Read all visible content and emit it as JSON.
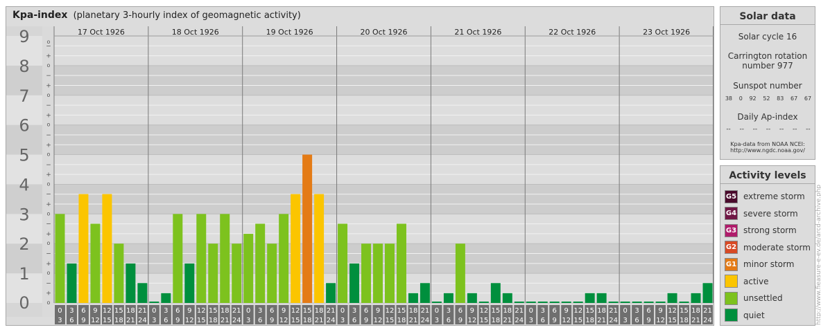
{
  "title": {
    "main": "Kpa-index",
    "sub": "(planetary 3-hourly index of geomagnetic activity)"
  },
  "chart_data": {
    "type": "bar",
    "days": [
      "17 Oct 1926",
      "18 Oct 1926",
      "19 Oct 1926",
      "20 Oct 1926",
      "21 Oct 1926",
      "22 Oct 1926",
      "23 Oct 1926"
    ],
    "interval_start": [
      "0",
      "3",
      "6",
      "9",
      "12",
      "15",
      "18",
      "21"
    ],
    "interval_end": [
      "3",
      "6",
      "9",
      "12",
      "15",
      "18",
      "21",
      "24"
    ],
    "y_major": [
      "0",
      "1",
      "2",
      "3",
      "4",
      "5",
      "6",
      "7",
      "8",
      "9"
    ],
    "y_minor": [
      "+",
      "o",
      "−"
    ],
    "ylim": [
      0,
      9
    ],
    "values": [
      [
        3.0,
        1.33,
        3.67,
        2.67,
        3.67,
        2.0,
        1.33,
        0.67
      ],
      [
        0.0,
        0.33,
        3.0,
        1.33,
        3.0,
        2.0,
        3.0,
        2.0
      ],
      [
        2.33,
        2.67,
        2.0,
        3.0,
        3.67,
        5.0,
        3.67,
        0.67
      ],
      [
        2.67,
        1.33,
        2.0,
        2.0,
        2.0,
        2.67,
        0.33,
        0.67
      ],
      [
        0.0,
        0.33,
        2.0,
        0.33,
        0.0,
        0.67,
        0.33,
        0.0
      ],
      [
        0.0,
        0.0,
        0.0,
        0.0,
        0.0,
        0.33,
        0.33,
        0.0
      ],
      [
        0.0,
        0.0,
        0.0,
        0.0,
        0.33,
        0.0,
        0.33,
        0.67
      ]
    ],
    "level_colors": {
      "quiet": "#008f3d",
      "unsettled": "#7dc21e",
      "active": "#fbc500",
      "minor_storm": "#e47b16",
      "moderate_storm": "#d84a25",
      "strong_storm": "#b01c6b",
      "severe_storm": "#701745",
      "extreme_storm": "#4a0b2c"
    }
  },
  "solar": {
    "title": "Solar data",
    "cycle": "Solar cycle 16",
    "carrington_line1": "Carrington rotation",
    "carrington_line2": "number 977",
    "sunspot_label": "Sunspot number",
    "sunspot_values": [
      "38",
      "0",
      "92",
      "52",
      "83",
      "67",
      "67"
    ],
    "ap_label": "Daily Ap-index",
    "ap_values": [
      "--",
      "--",
      "--",
      "--",
      "--",
      "--",
      "--"
    ],
    "source_line1": "Kpa-data from NOAA NCEI:",
    "source_line2": "http://www.ngdc.noaa.gov/"
  },
  "activity": {
    "title": "Activity levels",
    "items": [
      {
        "code": "G5",
        "label": "extreme storm",
        "color": "#4a0b2c"
      },
      {
        "code": "G4",
        "label": "severe storm",
        "color": "#701745"
      },
      {
        "code": "G3",
        "label": "strong storm",
        "color": "#b01c6b"
      },
      {
        "code": "G2",
        "label": "moderate storm",
        "color": "#d84a25"
      },
      {
        "code": "G1",
        "label": "minor storm",
        "color": "#e47b16"
      },
      {
        "code": "",
        "label": "active",
        "color": "#fbc500"
      },
      {
        "code": "",
        "label": "unsettled",
        "color": "#7dc21e"
      },
      {
        "code": "",
        "label": "quiet",
        "color": "#008f3d"
      }
    ]
  },
  "credit": "http://www.fieasure-e-ev.de/arcd-archive.php"
}
